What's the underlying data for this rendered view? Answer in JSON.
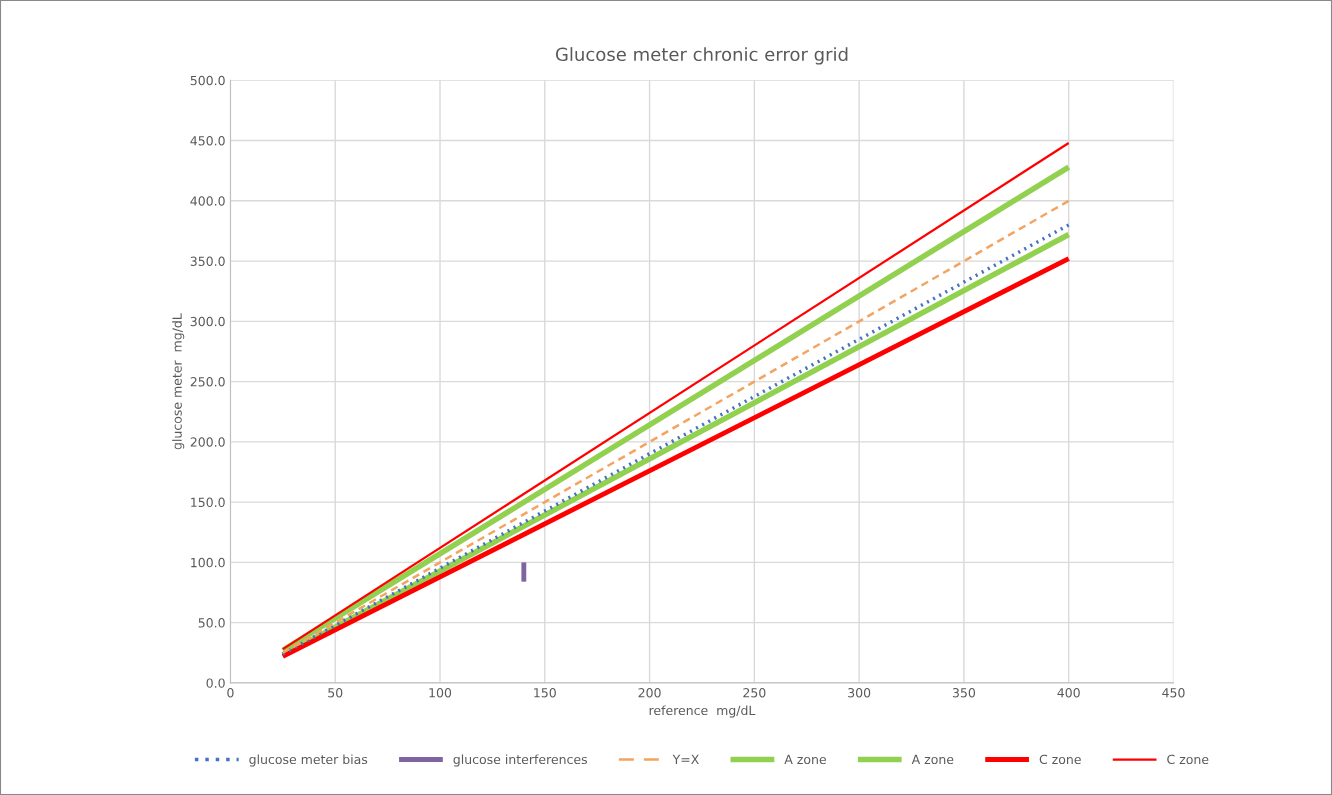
{
  "chart_data": {
    "type": "line",
    "title": "Glucose meter chronic error grid",
    "xlabel": "reference  mg/dL",
    "ylabel": "glucose meter  mg/dL",
    "x": [
      25,
      400
    ],
    "series": [
      {
        "name": "glucose meter bias",
        "color": "#4472c4",
        "line_style": "dotted",
        "values": [
          24,
          380
        ]
      },
      {
        "name": "glucose interferences",
        "color": "#8064a2",
        "line_style": "solid",
        "x": [
          140,
          140
        ],
        "values": [
          84,
          100
        ]
      },
      {
        "name": "Y=X",
        "color": "#f4a460",
        "line_style": "dashed",
        "values": [
          25,
          400
        ]
      },
      {
        "name": "A zone",
        "color": "#92d050",
        "line_style": "solid",
        "values": [
          27,
          428
        ]
      },
      {
        "name": "A zone",
        "color": "#92d050",
        "line_style": "solid",
        "values": [
          23,
          372
        ]
      },
      {
        "name": "C zone",
        "color": "#ff0000",
        "line_style": "solid",
        "values": [
          22,
          352
        ]
      },
      {
        "name": "C zone",
        "color": "#ff0000",
        "line_style": "solid",
        "values": [
          28,
          448
        ]
      }
    ],
    "xlim": [
      0,
      450
    ],
    "xticks": [
      0,
      50,
      100,
      150,
      200,
      250,
      300,
      350,
      400,
      450
    ],
    "ylim": [
      0,
      500
    ],
    "yticks": [
      {
        "value": 0,
        "label": "0.0"
      },
      {
        "value": 50,
        "label": "50.0"
      },
      {
        "value": 100,
        "label": "100.0"
      },
      {
        "value": 150,
        "label": "150.0"
      },
      {
        "value": 200,
        "label": "200.0"
      },
      {
        "value": 250,
        "label": "250.0"
      },
      {
        "value": 300,
        "label": "300.0"
      },
      {
        "value": 350,
        "label": "350.0"
      },
      {
        "value": 400,
        "label": "400.0"
      },
      {
        "value": 450,
        "label": "450.0"
      },
      {
        "value": 500,
        "label": "500.0"
      }
    ],
    "grid": true,
    "legend": "bottom",
    "marker": "none"
  }
}
